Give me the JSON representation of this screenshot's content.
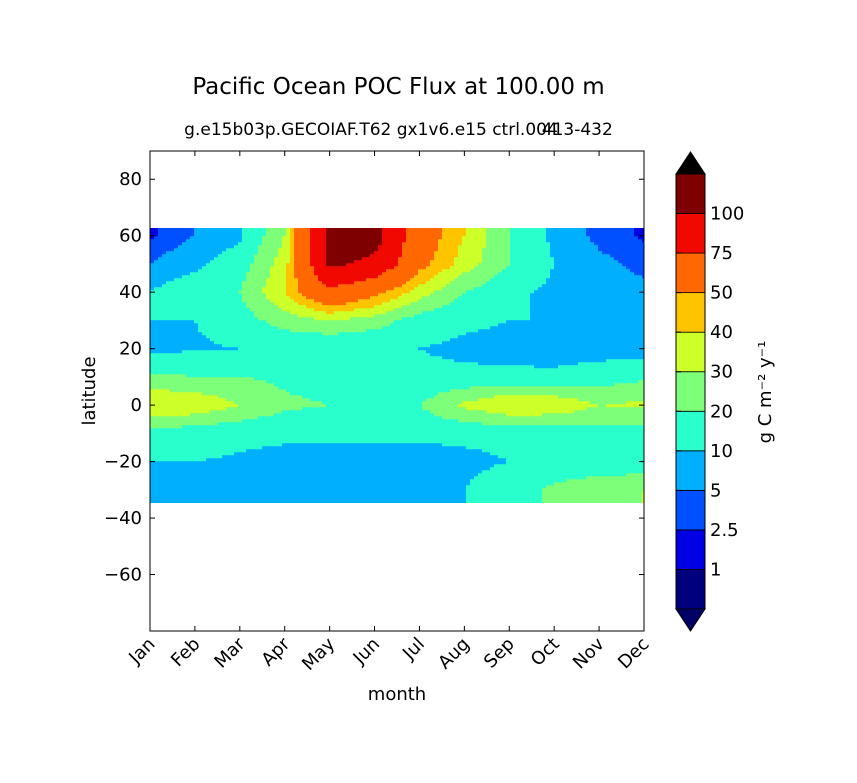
{
  "chart_data": {
    "type": "heatmap",
    "title": "Pacific Ocean POC Flux at 100.00 m",
    "subtitle": "g.e15b03p.GECOIAF.T62 gx1v6.e15 ctrl.004",
    "subtitle_overlap": "413-432",
    "xlabel": "month",
    "ylabel": "latitude",
    "x_categories": [
      "Jan",
      "Feb",
      "Mar",
      "Apr",
      "May",
      "Jun",
      "Jul",
      "Aug",
      "Sep",
      "Oct",
      "Nov",
      "Dec"
    ],
    "y_ticks": [
      80,
      60,
      40,
      20,
      0,
      -20,
      -40,
      -60
    ],
    "y_tick_labels": [
      "80",
      "60",
      "40",
      "20",
      "0",
      "−20",
      "−40",
      "−60"
    ],
    "ylim": [
      -80,
      90
    ],
    "data_lat_range": [
      -34,
      63
    ],
    "colorbar": {
      "label": "g C m⁻² y⁻¹",
      "levels": [
        1,
        2.5,
        5,
        10,
        20,
        30,
        40,
        50,
        75,
        100
      ],
      "tick_labels": [
        "1",
        "2.5",
        "5",
        "10",
        "20",
        "30",
        "40",
        "50",
        "75",
        "100"
      ],
      "colors": [
        "#00007f",
        "#0000e4",
        "#0050ff",
        "#00b0ff",
        "#29ffcd",
        "#7dff79",
        "#cdff29",
        "#ffc400",
        "#ff6800",
        "#f10800",
        "#7f0000"
      ],
      "extend": "both",
      "under_color": "#000066",
      "over_color": "#000000"
    },
    "field_samples": {
      "description_lat": [
        60,
        50,
        40,
        30,
        20,
        10,
        0,
        -10,
        -20,
        -30
      ],
      "rows": [
        {
          "lat": 60,
          "values": [
            2,
            5,
            8,
            30,
            110,
            110,
            60,
            40,
            20,
            8,
            4,
            2
          ]
        },
        {
          "lat": 50,
          "values": [
            5,
            8,
            15,
            35,
            105,
            95,
            55,
            35,
            20,
            10,
            6,
            4
          ]
        },
        {
          "lat": 40,
          "values": [
            10,
            15,
            20,
            40,
            70,
            55,
            35,
            20,
            12,
            8,
            7,
            6
          ]
        },
        {
          "lat": 30,
          "values": [
            10,
            10,
            15,
            25,
            30,
            25,
            15,
            12,
            10,
            10,
            9,
            9
          ]
        },
        {
          "lat": 20,
          "values": [
            8,
            9,
            10,
            10,
            10,
            10,
            10,
            8,
            7,
            6,
            6,
            6
          ]
        },
        {
          "lat": 10,
          "values": [
            22,
            20,
            20,
            18,
            15,
            14,
            12,
            12,
            12,
            12,
            15,
            18
          ]
        },
        {
          "lat": 0,
          "values": [
            40,
            38,
            30,
            22,
            20,
            20,
            20,
            32,
            40,
            38,
            30,
            32
          ]
        },
        {
          "lat": -10,
          "values": [
            15,
            14,
            12,
            12,
            12,
            12,
            12,
            12,
            12,
            14,
            15,
            15
          ]
        },
        {
          "lat": -20,
          "values": [
            10,
            10,
            9,
            7,
            6,
            6,
            6,
            8,
            10,
            12,
            12,
            12
          ]
        },
        {
          "lat": -30,
          "values": [
            10,
            9,
            8,
            7,
            7,
            7,
            8,
            10,
            15,
            22,
            28,
            30
          ]
        }
      ]
    }
  },
  "tags": {
    "overlap_text": "413-432"
  }
}
